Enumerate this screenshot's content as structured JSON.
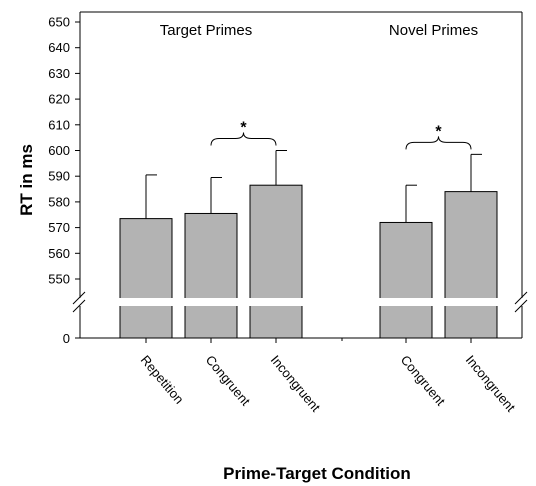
{
  "chart_data": {
    "type": "bar",
    "title": "",
    "xlabel": "Prime-Target Condition",
    "ylabel": "RT in ms",
    "ylim": [
      540,
      650
    ],
    "y_ticks": [
      650,
      640,
      630,
      620,
      610,
      600,
      590,
      580,
      570,
      560,
      550
    ],
    "y_zero_label": "0",
    "axis_break": true,
    "groups": [
      {
        "label": "Target Primes",
        "significance": "*",
        "bars": [
          {
            "category": "Repetition",
            "value": 573.5,
            "error": 17
          },
          {
            "category": "Congruent",
            "value": 575.5,
            "error": 14
          },
          {
            "category": "Incongruent",
            "value": 586.5,
            "error": 13.5
          }
        ]
      },
      {
        "label": "Novel Primes",
        "significance": "*",
        "bars": [
          {
            "category": "Congruent",
            "value": 572,
            "error": 14.5
          },
          {
            "category": "Incongruent",
            "value": 584,
            "error": 14.5
          }
        ]
      }
    ],
    "bar_color": "#b3b3b3",
    "grid": false,
    "legend": "none"
  }
}
